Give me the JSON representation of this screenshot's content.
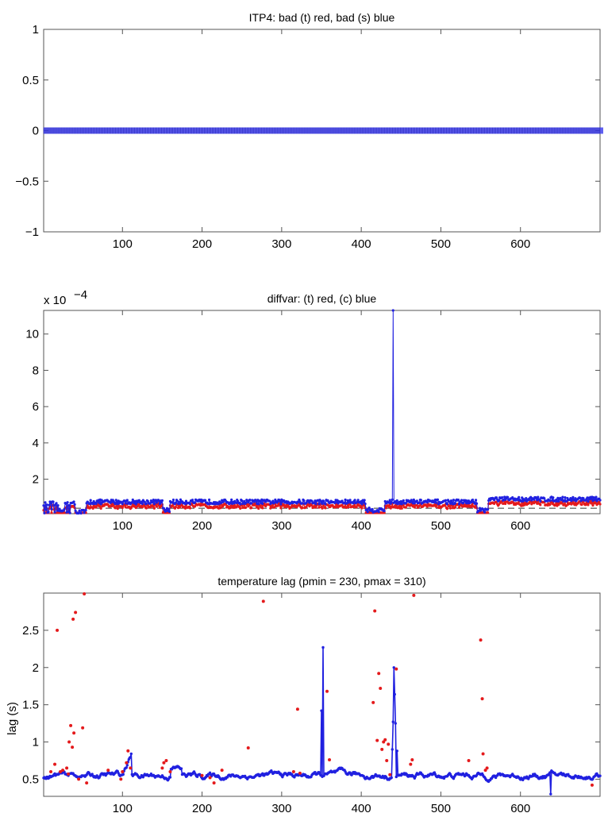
{
  "chart_data": [
    {
      "type": "scatter",
      "title": "ITP4: bad (t) red, bad (s) blue",
      "xlabel": "",
      "ylabel": "",
      "xlim": [
        1,
        700
      ],
      "ylim": [
        -1,
        1
      ],
      "xticks": [
        100,
        200,
        300,
        400,
        500,
        600
      ],
      "yticks": [
        -1,
        -0.5,
        0,
        0.5,
        1
      ],
      "ytick_labels": [
        "−1",
        "−0.5",
        "0",
        "0.5",
        "1"
      ],
      "series": [
        {
          "name": "bad (t)",
          "color": "#e41a1c",
          "constant_value": 0,
          "n": 700
        },
        {
          "name": "bad (s)",
          "color": "#2020e0",
          "constant_value": 0,
          "n": 700,
          "marker": "plus"
        }
      ]
    },
    {
      "type": "line",
      "title": "diffvar: (t) red, (c) blue",
      "scale_label": "x 10",
      "scale_exponent": "−4",
      "xlim": [
        1,
        700
      ],
      "ylim": [
        0.1,
        11.3
      ],
      "xticks": [
        100,
        200,
        300,
        400,
        500,
        600
      ],
      "yticks": [
        2,
        4,
        6,
        8,
        10
      ],
      "reference_line": {
        "y": 0.4,
        "style": "dashed",
        "color": "#000000"
      },
      "series": [
        {
          "name": "(t)",
          "color": "#e41a1c",
          "typical_range": [
            0.2,
            0.8
          ]
        },
        {
          "name": "(c)",
          "color": "#2020e0",
          "typical_range": [
            0.1,
            1.1
          ],
          "spike": {
            "x": 440,
            "y": 11.3
          }
        }
      ]
    },
    {
      "type": "line",
      "title": "temperature lag (pmin = 230, pmax = 310)",
      "xlabel": "",
      "ylabel": "lag (s)",
      "xlim": [
        1,
        700
      ],
      "ylim": [
        0.27,
        3.0
      ],
      "xticks": [
        100,
        200,
        300,
        400,
        500,
        600
      ],
      "yticks": [
        0.5,
        1,
        1.5,
        2,
        2.5
      ],
      "series": [
        {
          "name": "lag",
          "color": "#2020e0",
          "typical_range": [
            0.45,
            0.65
          ],
          "spikes": [
            {
              "x": 350,
              "y": 1.42
            },
            {
              "x": 352,
              "y": 2.27
            },
            {
              "x": 439,
              "y": 0.9
            },
            {
              "x": 440,
              "y": 1.27
            },
            {
              "x": 441,
              "y": 2.0
            },
            {
              "x": 442,
              "y": 1.64
            },
            {
              "x": 443,
              "y": 1.25
            },
            {
              "x": 445,
              "y": 0.88
            },
            {
              "x": 638,
              "y": 0.3
            }
          ]
        },
        {
          "name": "outliers",
          "color": "#e41a1c",
          "points": [
            [
              10,
              0.6
            ],
            [
              15,
              0.7
            ],
            [
              18,
              2.5
            ],
            [
              22,
              0.6
            ],
            [
              25,
              0.62
            ],
            [
              30,
              0.65
            ],
            [
              32,
              0.57
            ],
            [
              33,
              1.0
            ],
            [
              35,
              1.22
            ],
            [
              37,
              0.93
            ],
            [
              38,
              2.65
            ],
            [
              39,
              1.12
            ],
            [
              41,
              2.74
            ],
            [
              45,
              0.5
            ],
            [
              50,
              1.19
            ],
            [
              52,
              2.99
            ],
            [
              55,
              0.45
            ],
            [
              82,
              0.62
            ],
            [
              98,
              0.5
            ],
            [
              100,
              0.6
            ],
            [
              105,
              0.72
            ],
            [
              107,
              0.88
            ],
            [
              110,
              0.65
            ],
            [
              150,
              0.65
            ],
            [
              152,
              0.72
            ],
            [
              155,
              0.75
            ],
            [
              160,
              0.6
            ],
            [
              200,
              0.55
            ],
            [
              210,
              0.52
            ],
            [
              215,
              0.45
            ],
            [
              225,
              0.62
            ],
            [
              258,
              0.92
            ],
            [
              277,
              2.89
            ],
            [
              315,
              0.6
            ],
            [
              320,
              1.44
            ],
            [
              323,
              0.58
            ],
            [
              357,
              1.68
            ],
            [
              360,
              0.76
            ],
            [
              415,
              1.53
            ],
            [
              417,
              2.76
            ],
            [
              420,
              1.02
            ],
            [
              422,
              1.92
            ],
            [
              424,
              1.72
            ],
            [
              426,
              0.9
            ],
            [
              428,
              1.0
            ],
            [
              430,
              1.03
            ],
            [
              432,
              0.75
            ],
            [
              434,
              0.97
            ],
            [
              436,
              0.56
            ],
            [
              444,
              1.98
            ],
            [
              462,
              0.7
            ],
            [
              464,
              0.76
            ],
            [
              466,
              2.97
            ],
            [
              535,
              0.75
            ],
            [
              550,
              2.37
            ],
            [
              552,
              1.58
            ],
            [
              553,
              0.84
            ],
            [
              556,
              0.62
            ],
            [
              558,
              0.65
            ],
            [
              690,
              0.42
            ]
          ]
        }
      ]
    }
  ]
}
